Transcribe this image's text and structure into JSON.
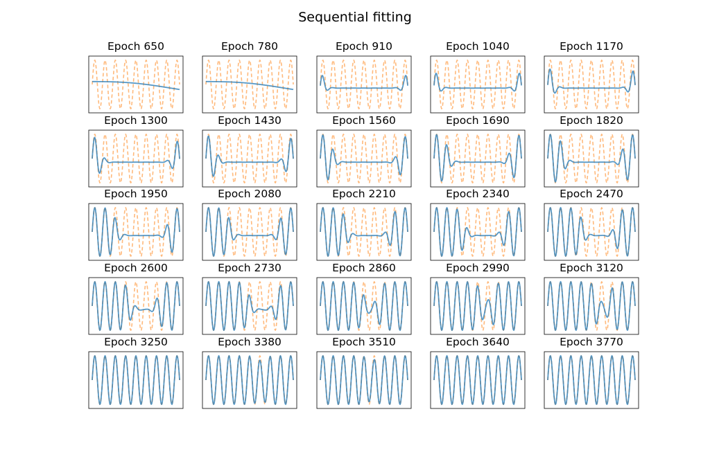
{
  "figure_title": "Sequential fitting",
  "chart_data": {
    "type": "line",
    "title": "Sequential fitting",
    "layout": "5x5 grid of subplots",
    "grid": false,
    "axis_ticks": false,
    "series_meta": [
      {
        "role": "target",
        "style": "dashed",
        "color": "#ff7f0e"
      },
      {
        "role": "prediction",
        "style": "solid",
        "color": "#1f77b4"
      }
    ],
    "target_periods": 8.5,
    "subplots": [
      {
        "title": "Epoch 650",
        "fitted_from_left": 0.0,
        "fitted_from_right": 0.0
      },
      {
        "title": "Epoch 780",
        "fitted_from_left": 0.0,
        "fitted_from_right": 0.0
      },
      {
        "title": "Epoch 910",
        "fitted_from_left": 0.02,
        "fitted_from_right": 0.02
      },
      {
        "title": "Epoch 1040",
        "fitted_from_left": 0.03,
        "fitted_from_right": 0.03
      },
      {
        "title": "Epoch 1170",
        "fitted_from_left": 0.05,
        "fitted_from_right": 0.04
      },
      {
        "title": "Epoch 1300",
        "fitted_from_left": 0.09,
        "fitted_from_right": 0.06
      },
      {
        "title": "Epoch 1430",
        "fitted_from_left": 0.11,
        "fitted_from_right": 0.08
      },
      {
        "title": "Epoch 1560",
        "fitted_from_left": 0.14,
        "fitted_from_right": 0.1
      },
      {
        "title": "Epoch 1690",
        "fitted_from_left": 0.16,
        "fitted_from_right": 0.12
      },
      {
        "title": "Epoch 1820",
        "fitted_from_left": 0.18,
        "fitted_from_right": 0.14
      },
      {
        "title": "Epoch 1950",
        "fitted_from_left": 0.28,
        "fitted_from_right": 0.13
      },
      {
        "title": "Epoch 2080",
        "fitted_from_left": 0.28,
        "fitted_from_right": 0.16
      },
      {
        "title": "Epoch 2210",
        "fitted_from_left": 0.3,
        "fitted_from_right": 0.2
      },
      {
        "title": "Epoch 2340",
        "fitted_from_left": 0.35,
        "fitted_from_right": 0.2
      },
      {
        "title": "Epoch 2470",
        "fitted_from_left": 0.4,
        "fitted_from_right": 0.22
      },
      {
        "title": "Epoch 2600",
        "fitted_from_left": 0.44,
        "fitted_from_right": 0.25
      },
      {
        "title": "Epoch 2730",
        "fitted_from_left": 0.5,
        "fitted_from_right": 0.2
      },
      {
        "title": "Epoch 2860",
        "fitted_from_left": 0.5,
        "fitted_from_right": 0.35
      },
      {
        "title": "Epoch 2990",
        "fitted_from_left": 0.55,
        "fitted_from_right": 0.35
      },
      {
        "title": "Epoch 3120",
        "fitted_from_left": 0.58,
        "fitted_from_right": 0.3
      },
      {
        "title": "Epoch 3250",
        "fitted_from_left": 0.6,
        "fitted_from_right": 0.4
      },
      {
        "title": "Epoch 3380",
        "fitted_from_left": 0.62,
        "fitted_from_right": 0.36
      },
      {
        "title": "Epoch 3510",
        "fitted_from_left": 0.58,
        "fitted_from_right": 0.4
      },
      {
        "title": "Epoch 3640",
        "fitted_from_left": 0.7,
        "fitted_from_right": 0.3
      },
      {
        "title": "Epoch 3770",
        "fitted_from_left": 1.0,
        "fitted_from_right": 1.0
      }
    ]
  }
}
